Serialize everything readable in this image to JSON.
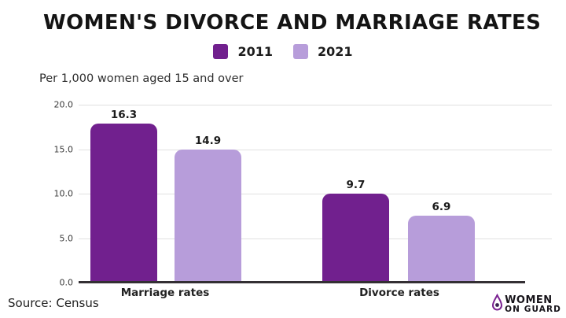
{
  "title": "WOMEN'S DIVORCE AND MARRIAGE RATES",
  "subtitle": "Per 1,000 women aged 15 and over",
  "source": "Source: Census",
  "logo": {
    "line1": "WOMEN",
    "line2": "ON GUARD",
    "icon": "droplet-figure-icon",
    "accent_color": "#7B2392"
  },
  "chart_data": {
    "type": "bar",
    "categories": [
      "Marriage rates",
      "Divorce rates"
    ],
    "series": [
      {
        "name": "2011",
        "color": "#71208E",
        "values": [
          16.3,
          9.7
        ]
      },
      {
        "name": "2021",
        "color": "#B79DDA",
        "values": [
          14.9,
          6.9
        ]
      }
    ],
    "title": "WOMEN'S DIVORCE AND MARRIAGE RATES",
    "subtitle": "Per 1,000 women aged 15 and over",
    "xlabel": "",
    "ylabel": "Per 1,000 women aged 15 and over",
    "ylim": [
      0,
      20
    ],
    "yticks": [
      20.0,
      15.0,
      10.0,
      5.0,
      0.0
    ],
    "ytick_labels": [
      "20.0",
      "15.0",
      "10.0",
      "5.0",
      "0.0"
    ],
    "grid": true,
    "legend_position": "top-center",
    "bar_label_format": "one-decimal",
    "drawn_values_note": "bars as printed are slightly taller than labeled values",
    "drawn_values": [
      [
        17.9,
        10.0
      ],
      [
        15.0,
        7.5
      ]
    ]
  }
}
